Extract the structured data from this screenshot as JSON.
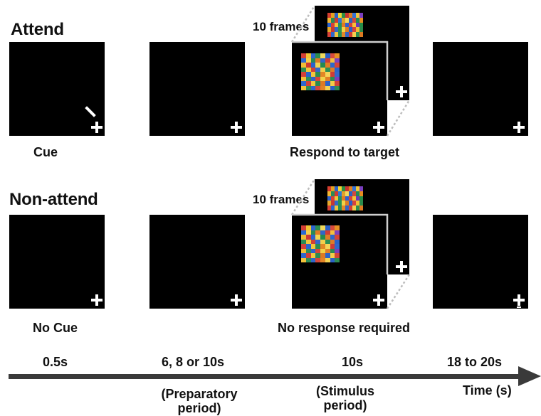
{
  "sections": {
    "attend": {
      "title": "Attend",
      "cue_label": "Cue",
      "stimulus_label": "Respond to target",
      "frames_label": "10 frames"
    },
    "non_attend": {
      "title": "Non-attend",
      "cue_label": "No Cue",
      "stimulus_label": "No response required",
      "frames_label": "10 frames"
    }
  },
  "timeline": {
    "labels": {
      "t1": "0.5s",
      "t2": "6, 8 or 10s",
      "t3": "10s",
      "t4": "18 to 20s"
    },
    "axis_label": "Time (s)",
    "notes": {
      "preparatory": "(Preparatory\nperiod)",
      "stimulus": "(Stimulus\nperiod)"
    }
  },
  "colors": {
    "background": "#ffffff",
    "frame": "#000000",
    "fixation": "#ffffff",
    "timeline": "#3a3a3a",
    "text": "#111111"
  },
  "icons": {
    "fixation_cross": "fixation-cross-icon",
    "cue_mark": "cue-mark-icon",
    "arrow": "arrow-right-icon"
  }
}
